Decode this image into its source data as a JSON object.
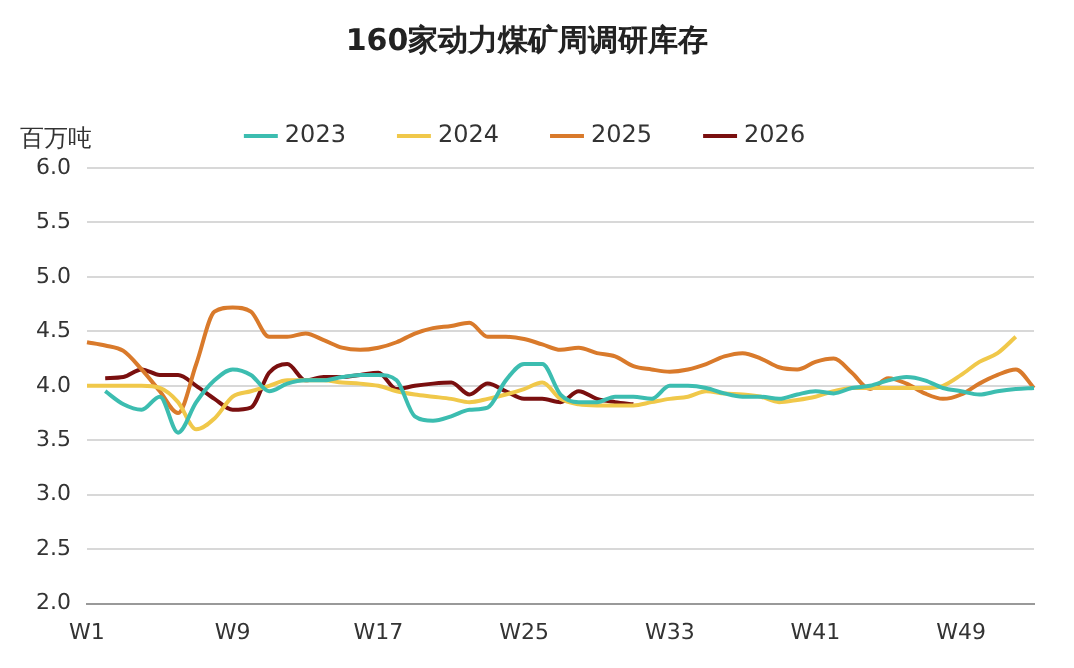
{
  "chart_data": {
    "type": "line",
    "title": "160家动力煤矿周调研库存",
    "ylabel": "百万吨",
    "categories": [
      "W1",
      null,
      null,
      null,
      null,
      null,
      null,
      null,
      "W9",
      null,
      null,
      null,
      null,
      null,
      null,
      null,
      "W17",
      null,
      null,
      null,
      null,
      null,
      null,
      null,
      "W25",
      null,
      null,
      null,
      null,
      null,
      null,
      null,
      "W33",
      null,
      null,
      null,
      null,
      null,
      null,
      null,
      "W41",
      null,
      null,
      null,
      null,
      null,
      null,
      null,
      "W49",
      null,
      null,
      null,
      null
    ],
    "ylim": [
      2.0,
      6.0
    ],
    "yticks": [
      {
        "value": 2,
        "label": "2.0"
      },
      {
        "value": 2.5,
        "label": "2.5"
      },
      {
        "value": 3,
        "label": "3.0"
      },
      {
        "value": 3.5,
        "label": "3.5"
      },
      {
        "value": 4,
        "label": "4.0"
      },
      {
        "value": 4.5,
        "label": "4.5"
      },
      {
        "value": 5,
        "label": "5.0"
      },
      {
        "value": 5.5,
        "label": "5.5"
      },
      {
        "value": 6,
        "label": "6.0"
      }
    ],
    "grid": "y",
    "legend": "top",
    "series": [
      {
        "name": "2023",
        "color": "#3cbdb0",
        "values": [
          null,
          3.95,
          3.83,
          3.78,
          3.9,
          3.57,
          3.85,
          4.05,
          4.15,
          4.1,
          3.95,
          4.02,
          4.05,
          4.05,
          4.08,
          4.1,
          4.1,
          4.05,
          3.72,
          3.68,
          3.72,
          3.78,
          3.8,
          4.05,
          4.2,
          4.2,
          3.92,
          3.85,
          3.85,
          3.9,
          3.9,
          3.88,
          4.0,
          4.0,
          3.98,
          3.93,
          3.9,
          3.9,
          3.88,
          3.92,
          3.95,
          3.93,
          3.98,
          4.0,
          4.05,
          4.08,
          4.05,
          3.98,
          3.95,
          3.92,
          3.95,
          3.97,
          3.98
        ]
      },
      {
        "name": "2024",
        "color": "#f0c84a",
        "values": [
          4.0,
          4.0,
          4.0,
          4.0,
          3.98,
          3.85,
          3.6,
          3.7,
          3.9,
          3.95,
          4.0,
          4.05,
          4.05,
          4.05,
          4.03,
          4.02,
          4.0,
          3.95,
          3.92,
          3.9,
          3.88,
          3.85,
          3.88,
          3.92,
          3.97,
          4.03,
          3.88,
          3.83,
          3.82,
          3.82,
          3.82,
          3.85,
          3.88,
          3.9,
          3.95,
          3.93,
          3.92,
          3.9,
          3.85,
          3.87,
          3.9,
          3.95,
          3.98,
          3.98,
          3.98,
          3.98,
          3.98,
          4.0,
          4.1,
          4.22,
          4.3,
          4.45,
          null
        ]
      },
      {
        "name": "2025",
        "color": "#d97a2b",
        "values": [
          4.4,
          4.37,
          4.32,
          4.15,
          3.95,
          3.75,
          4.2,
          4.68,
          4.72,
          4.68,
          4.45,
          4.45,
          4.48,
          4.42,
          4.35,
          4.33,
          4.35,
          4.4,
          4.48,
          4.53,
          4.55,
          4.58,
          4.45,
          4.45,
          4.43,
          4.38,
          4.33,
          4.35,
          4.3,
          4.27,
          4.18,
          4.15,
          4.13,
          4.15,
          4.2,
          4.27,
          4.3,
          4.25,
          4.17,
          4.15,
          4.22,
          4.25,
          4.12,
          3.97,
          4.07,
          4.02,
          3.93,
          3.88,
          3.92,
          4.02,
          4.1,
          4.15,
          3.98
        ]
      },
      {
        "name": "2026",
        "color": "#7a0f0f",
        "values": [
          null,
          4.07,
          4.08,
          4.15,
          4.1,
          4.1,
          4.0,
          3.88,
          3.78,
          3.8,
          4.12,
          4.2,
          4.05,
          4.08,
          4.08,
          4.1,
          4.12,
          3.97,
          4.0,
          4.02,
          4.03,
          3.92,
          4.02,
          3.95,
          3.88,
          3.88,
          3.85,
          3.95,
          3.88,
          3.85,
          3.83,
          null,
          null,
          null,
          null,
          null,
          null,
          null,
          null,
          null,
          null,
          null,
          null,
          null,
          null,
          null,
          null,
          null,
          null,
          null,
          null,
          null,
          null
        ]
      }
    ]
  }
}
